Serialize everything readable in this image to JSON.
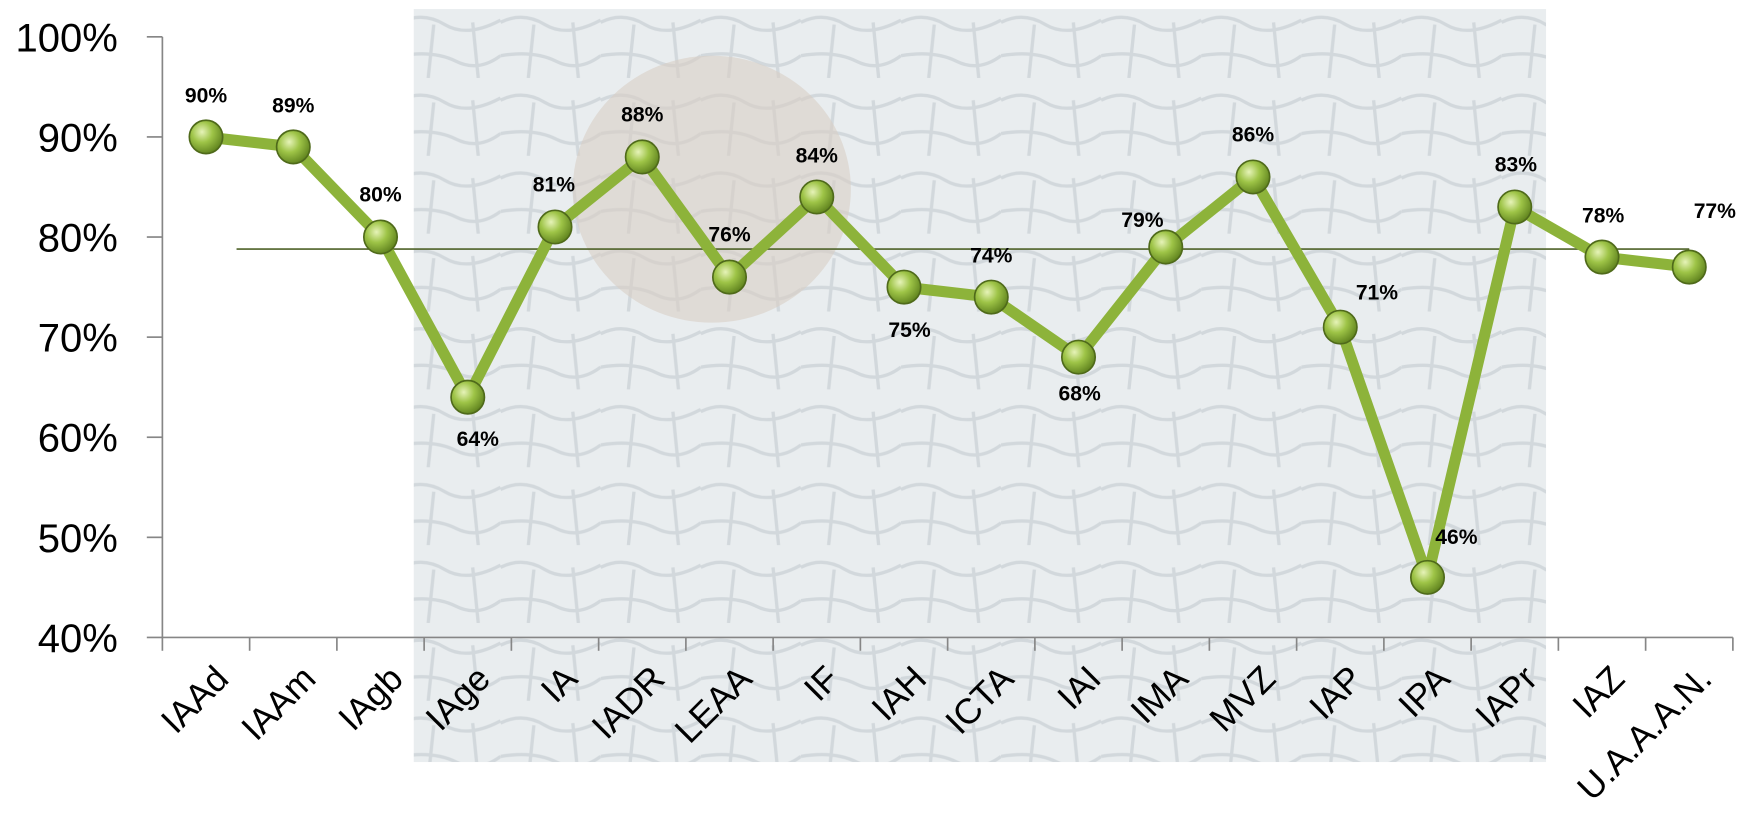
{
  "chart_data": {
    "type": "line",
    "categories": [
      "IAAd",
      "IAAm",
      "IAgb",
      "IAge",
      "IA",
      "IADR",
      "LEAA",
      "IF",
      "IAH",
      "ICTA",
      "IAI",
      "IMA",
      "MVZ",
      "IAP",
      "IPA",
      "IAPr",
      "IAZ",
      "U.A.A.A.N."
    ],
    "values": [
      90,
      89,
      80,
      64,
      81,
      88,
      76,
      84,
      75,
      74,
      68,
      79,
      86,
      71,
      46,
      83,
      78,
      77
    ],
    "value_labels": [
      "90%",
      "89%",
      "80%",
      "64%",
      "81%",
      "88%",
      "76%",
      "84%",
      "75%",
      "74%",
      "68%",
      "79%",
      "86%",
      "71%",
      "46%",
      "83%",
      "78%",
      "77%"
    ],
    "color": "#8db33a",
    "reference_line": 78.8,
    "reference_color": "#4f6228",
    "ylim": [
      40,
      100
    ],
    "yticks": [
      {
        "value": 40,
        "label": "40%"
      },
      {
        "value": 50,
        "label": "50%"
      },
      {
        "value": 60,
        "label": "60%"
      },
      {
        "value": 70,
        "label": "70%"
      },
      {
        "value": 80,
        "label": "80%"
      },
      {
        "value": 90,
        "label": "90%"
      },
      {
        "value": 100,
        "label": "100%"
      }
    ],
    "grid": false
  }
}
